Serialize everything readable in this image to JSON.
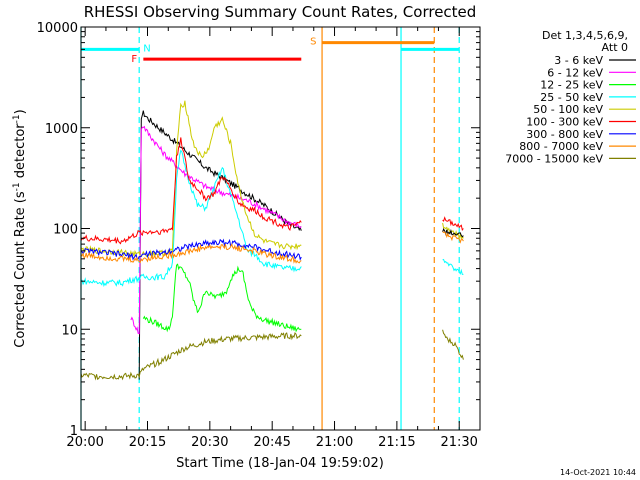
{
  "chart_data": {
    "type": "line",
    "title": "RHESSI Observing Summary Count Rates, Corrected",
    "xlabel": "Start Time (18-Jan-04 19:59:02)",
    "ylabel": "Corrected Count Rate (s⁻¹ detector⁻¹)",
    "ylabel_parts": [
      "Corrected Count Rate (s",
      "-1",
      " detector",
      "-1",
      ")"
    ],
    "yscale": "log",
    "xlim": [
      0,
      96
    ],
    "ylim": [
      1,
      10000
    ],
    "x_ticks": [
      {
        "t": 1,
        "label": "20:00"
      },
      {
        "t": 16,
        "label": "20:15"
      },
      {
        "t": 31,
        "label": "20:30"
      },
      {
        "t": 46,
        "label": "20:45"
      },
      {
        "t": 61,
        "label": "21:00"
      },
      {
        "t": 76,
        "label": "21:15"
      },
      {
        "t": 91,
        "label": "21:30"
      }
    ],
    "y_ticks": [
      {
        "v": 1,
        "label": "1"
      },
      {
        "v": 10,
        "label": "10"
      },
      {
        "v": 100,
        "label": "100"
      },
      {
        "v": 1000,
        "label": "1000"
      },
      {
        "v": 10000,
        "label": "10000"
      }
    ],
    "legend_header": [
      "Det 1,3,4,5,6,9,",
      "Att 0"
    ],
    "legend_position": "right",
    "footer_date": "14-Oct-2021 10:44",
    "series": [
      {
        "name": "3 - 6 keV",
        "color": "#000000",
        "x": [
          14,
          14.5,
          15,
          16,
          20,
          25,
          30,
          35,
          40,
          45,
          50,
          53
        ],
        "y": [
          3,
          1300,
          1400,
          1250,
          900,
          600,
          400,
          300,
          220,
          160,
          110,
          95
        ]
      },
      {
        "name": "6 - 12 keV",
        "color": "#ff00ff",
        "x": [
          12,
          13,
          14,
          14.5,
          15,
          16,
          20,
          25,
          30,
          35,
          40,
          45,
          50,
          53
        ],
        "y": [
          13,
          11,
          9,
          1000,
          1050,
          900,
          550,
          350,
          260,
          220,
          190,
          150,
          115,
          105
        ]
      },
      {
        "name": "12 - 25 keV",
        "color": "#00ff00",
        "x": [
          15,
          17,
          19,
          21,
          21.5,
          22,
          22.5,
          23,
          24,
          25,
          26,
          27,
          28,
          29,
          30,
          31,
          33,
          35,
          36,
          38,
          39,
          40,
          41,
          42,
          43,
          45,
          47,
          48,
          50,
          52,
          53
        ],
        "y": [
          13,
          12,
          11,
          10,
          11,
          14,
          25,
          45,
          40,
          35,
          30,
          20,
          15,
          18,
          25,
          22,
          21,
          24,
          32,
          40,
          35,
          22,
          16,
          14,
          13,
          12,
          11.5,
          11,
          10.5,
          10,
          10
        ]
      },
      {
        "name": "25 - 50 keV",
        "color": "#00ffff",
        "x": [
          0,
          5,
          10,
          12,
          14,
          15,
          20,
          22,
          23,
          24,
          26,
          28,
          30,
          32,
          34,
          36,
          38,
          40,
          42,
          44,
          46,
          48,
          50,
          52,
          53
        ],
        "y": [
          30,
          29,
          29,
          31,
          32,
          33,
          33,
          45,
          300,
          600,
          300,
          170,
          160,
          250,
          400,
          220,
          120,
          60,
          55,
          45,
          43,
          41,
          40,
          40,
          42
        ]
      },
      {
        "name": "50 - 100 keV",
        "color": "#cccc00",
        "x": [
          0,
          5,
          10,
          14,
          15,
          20,
          22,
          23,
          24,
          25,
          27,
          29,
          31,
          32,
          34,
          36,
          38,
          40,
          42,
          44,
          46,
          48,
          50,
          53
        ],
        "y": [
          62,
          60,
          58,
          55,
          56,
          57,
          60,
          600,
          1600,
          1800,
          700,
          500,
          650,
          1000,
          1200,
          700,
          250,
          130,
          85,
          75,
          70,
          68,
          66,
          68
        ]
      },
      {
        "name": "100 - 300 keV",
        "color": "#ff0000",
        "x": [
          0,
          5,
          10,
          14,
          15,
          20,
          22,
          23,
          24,
          26,
          28,
          30,
          32,
          34,
          36,
          38,
          40,
          42,
          44,
          46,
          48,
          50,
          53
        ],
        "y": [
          80,
          78,
          75,
          90,
          92,
          94,
          100,
          500,
          800,
          300,
          250,
          200,
          220,
          330,
          250,
          180,
          160,
          150,
          130,
          120,
          110,
          100,
          115
        ]
      },
      {
        "name": "300 - 800 keV",
        "color": "#0000ff",
        "x": [
          0,
          5,
          10,
          14,
          15,
          20,
          25,
          30,
          35,
          40,
          45,
          50,
          53
        ],
        "y": [
          60,
          58,
          55,
          52,
          55,
          58,
          65,
          72,
          73,
          68,
          60,
          55,
          52
        ]
      },
      {
        "name": "800 - 7000 keV",
        "color": "#ff8800",
        "x": [
          0,
          5,
          10,
          14,
          15,
          20,
          25,
          30,
          35,
          40,
          45,
          50,
          53
        ],
        "y": [
          55,
          52,
          50,
          48,
          50,
          53,
          58,
          65,
          66,
          62,
          55,
          50,
          48
        ]
      },
      {
        "name": "7000 - 15000 keV",
        "color": "#808000",
        "x": [
          0,
          5,
          10,
          14,
          15,
          20,
          25,
          30,
          35,
          40,
          45,
          50,
          53
        ],
        "y": [
          3.5,
          3.4,
          3.4,
          3.5,
          4,
          5,
          6.5,
          7.5,
          8,
          8.2,
          8.4,
          8.6,
          8.6
        ]
      }
    ],
    "series_later": [
      {
        "color": "#ff0000",
        "x": [
          87,
          88,
          90,
          92
        ],
        "y": [
          125,
          120,
          110,
          100
        ]
      },
      {
        "color": "#cccc00",
        "x": [
          87,
          88,
          90,
          92
        ],
        "y": [
          110,
          100,
          90,
          80
        ]
      },
      {
        "color": "#000000",
        "x": [
          87,
          88,
          90,
          92
        ],
        "y": [
          95,
          92,
          88,
          85
        ]
      },
      {
        "color": "#ff8800",
        "x": [
          87,
          88,
          90,
          92
        ],
        "y": [
          90,
          85,
          80,
          75
        ]
      },
      {
        "color": "#00ffff",
        "x": [
          87,
          88,
          90,
          92
        ],
        "y": [
          50,
          45,
          40,
          35
        ]
      },
      {
        "color": "#808000",
        "x": [
          87,
          88,
          90,
          92
        ],
        "y": [
          9.5,
          8,
          7,
          5
        ]
      }
    ],
    "flag_bars": [
      {
        "label": "N",
        "color": "#00ffff",
        "y": 6000,
        "segments": [
          [
            0,
            14
          ],
          [
            77,
            91
          ]
        ]
      },
      {
        "label": "F",
        "color": "#ff0000",
        "y": 4800,
        "segments": [
          [
            15,
            53
          ]
        ]
      },
      {
        "label": "S",
        "color": "#ff8800",
        "y": 7000,
        "segments": [
          [
            58,
            85
          ]
        ]
      }
    ],
    "vlines": [
      {
        "x": 0,
        "color": "#00ffff",
        "style": "solid"
      },
      {
        "x": 14,
        "color": "#00ffff",
        "style": "dashed"
      },
      {
        "x": 58,
        "color": "#ff8800",
        "style": "solid"
      },
      {
        "x": 77,
        "color": "#00ffff",
        "style": "solid"
      },
      {
        "x": 85,
        "color": "#ff8800",
        "style": "dashed"
      },
      {
        "x": 91,
        "color": "#00ffff",
        "style": "dashed"
      }
    ]
  }
}
